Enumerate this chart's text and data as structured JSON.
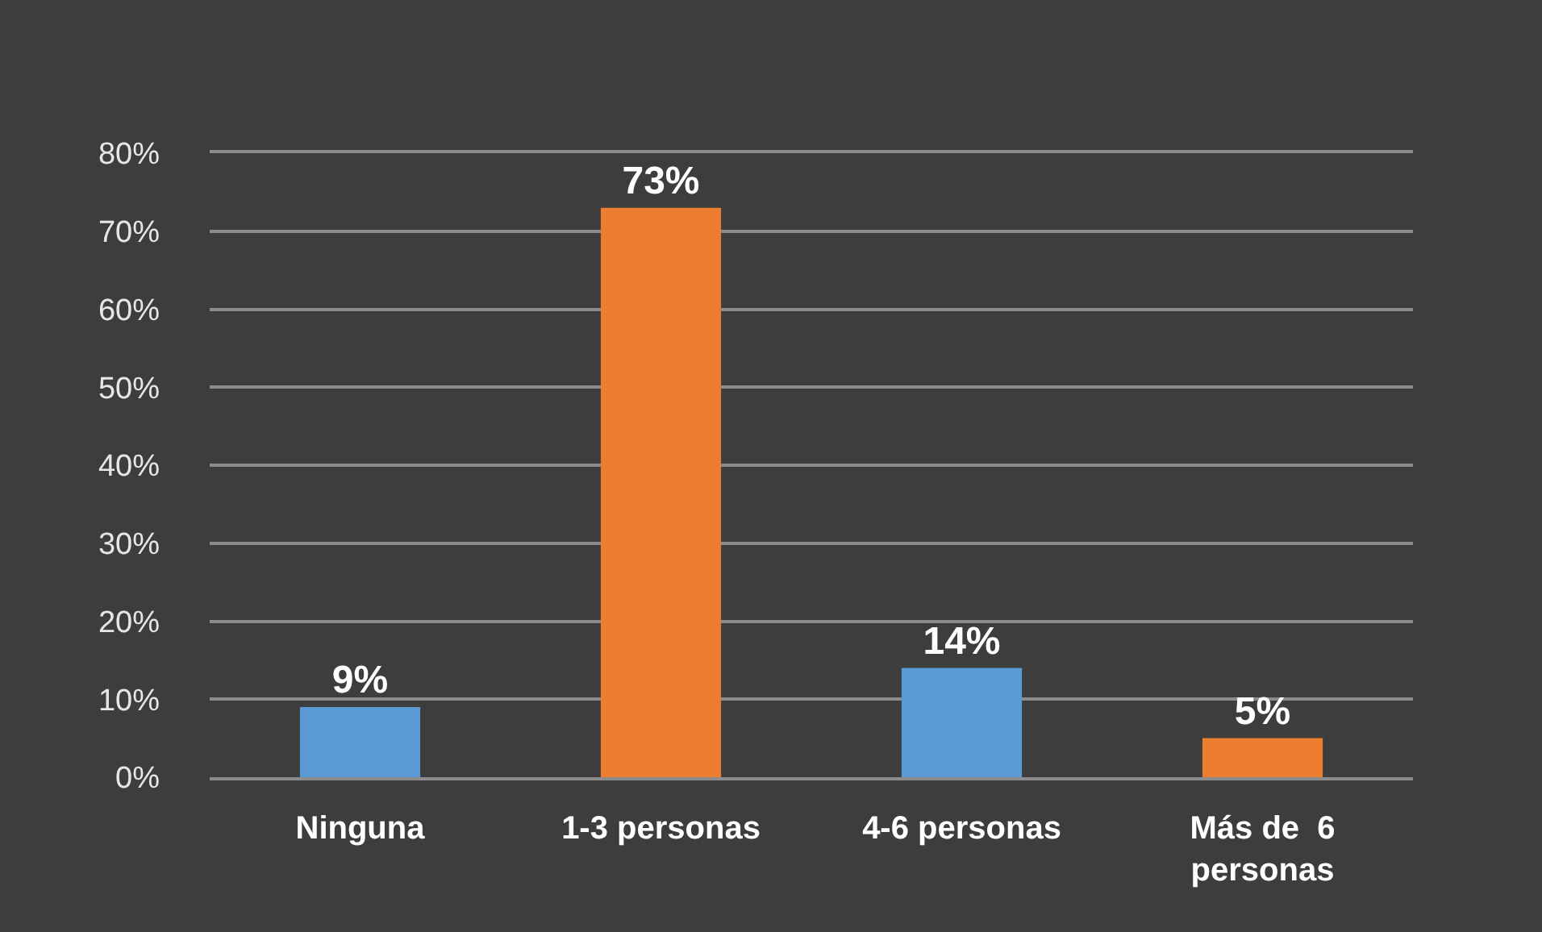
{
  "chart_data": {
    "type": "bar",
    "categories": [
      "Ninguna",
      "1-3 personas",
      "4-6 personas",
      "Más de  6 personas"
    ],
    "values": [
      9,
      73,
      14,
      5
    ],
    "colors": [
      "#5b9bd5",
      "#ed7d31",
      "#5b9bd5",
      "#ed7d31"
    ],
    "value_labels": [
      "9%",
      "73%",
      "14%",
      "5%"
    ],
    "ylim": [
      0,
      80
    ],
    "yticks": [
      {
        "value": 0,
        "label": "0%"
      },
      {
        "value": 10,
        "label": "10%"
      },
      {
        "value": 20,
        "label": "20%"
      },
      {
        "value": 30,
        "label": "30%"
      },
      {
        "value": 40,
        "label": "40%"
      },
      {
        "value": 50,
        "label": "50%"
      },
      {
        "value": 60,
        "label": "60%"
      },
      {
        "value": 70,
        "label": "70%"
      },
      {
        "value": 80,
        "label": "80%"
      }
    ],
    "grid": "y"
  }
}
